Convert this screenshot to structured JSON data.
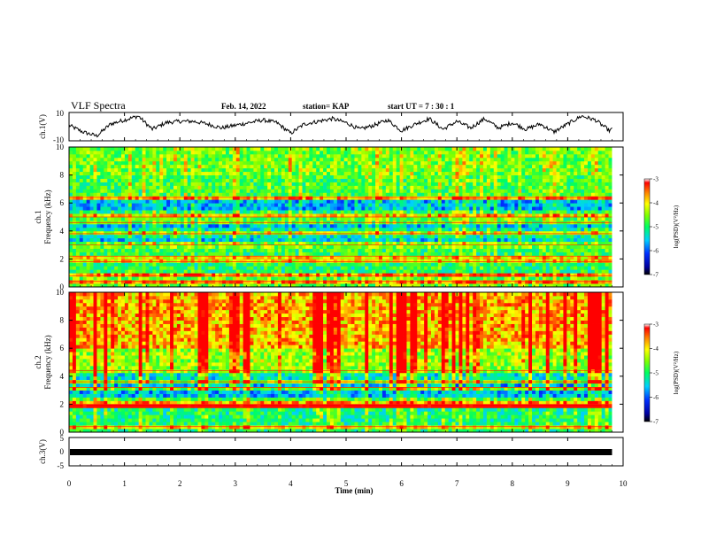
{
  "header": {
    "title": "VLF Spectra",
    "date": "Feb. 14, 2022",
    "station": "station= KAP",
    "start": "start  UT =   7 : 30 : 1"
  },
  "chart_data": [
    {
      "type": "line",
      "panel": "ch1",
      "ylabel": "ch.1(V)",
      "ylim": [
        -10,
        10
      ],
      "yticks": [
        "10",
        "-10"
      ],
      "xlim": [
        0,
        10
      ],
      "x": [
        0.0,
        0.25,
        0.5,
        0.75,
        1.0,
        1.25,
        1.5,
        1.75,
        2.0,
        2.25,
        2.5,
        2.75,
        3.0,
        3.25,
        3.5,
        3.75,
        4.0,
        4.25,
        4.5,
        4.75,
        5.0,
        5.25,
        5.5,
        5.75,
        6.0,
        6.25,
        6.5,
        6.75,
        7.0,
        7.25,
        7.5,
        7.75,
        8.0,
        8.25,
        8.5,
        8.75,
        9.0,
        9.25,
        9.5,
        9.75,
        9.8
      ],
      "y": [
        1,
        -4,
        -7,
        2,
        5,
        8,
        -2,
        3,
        4,
        4,
        2,
        -1,
        1,
        3,
        5,
        3,
        -5,
        2,
        4,
        6,
        3,
        -2,
        1,
        5,
        -3,
        2,
        6,
        -2,
        4,
        -1,
        6,
        -1,
        3,
        -2,
        2,
        -4,
        2,
        8,
        5,
        -3,
        -2
      ]
    },
    {
      "type": "heatmap",
      "panel": "ch1-spectrogram",
      "ylabel": "ch.1\nFrequency (kHz)",
      "xlim": [
        0,
        10
      ],
      "ylim": [
        0,
        10
      ],
      "yticks": [
        "0",
        "2",
        "4",
        "6",
        "8",
        "10"
      ],
      "colorbar": {
        "label": "log(PSD)(V²/Hz)",
        "range": [
          -7,
          -3
        ],
        "ticks": [
          "-3",
          "-4",
          "-5",
          "-6",
          "-7"
        ]
      },
      "band_mean_logpsd": [
        {
          "f": [
            0.0,
            1.0
          ],
          "value": -4.6
        },
        {
          "f": [
            1.0,
            2.2
          ],
          "value": -5.0
        },
        {
          "f": [
            2.2,
            2.8
          ],
          "value": -4.9
        },
        {
          "f": [
            2.8,
            3.6
          ],
          "value": -5.6
        },
        {
          "f": [
            3.6,
            4.2
          ],
          "value": -5.3
        },
        {
          "f": [
            4.2,
            5.0
          ],
          "value": -5.7
        },
        {
          "f": [
            5.0,
            5.6
          ],
          "value": -5.0
        },
        {
          "f": [
            5.6,
            6.2
          ],
          "value": -5.7
        },
        {
          "f": [
            6.2,
            8.0
          ],
          "value": -4.8
        },
        {
          "f": [
            8.0,
            10.0
          ],
          "value": -4.6
        }
      ],
      "lines_khz": [
        0.4,
        0.8,
        1.8,
        2.2,
        3.0,
        3.8,
        4.6,
        5.0,
        6.4
      ]
    },
    {
      "type": "heatmap",
      "panel": "ch2-spectrogram",
      "ylabel": "ch.2\nFrequency (kHz)",
      "xlim": [
        0,
        10
      ],
      "ylim": [
        0,
        10
      ],
      "yticks": [
        "0",
        "2",
        "4",
        "6",
        "8",
        "10"
      ],
      "colorbar": {
        "label": "log(PSD)(V²/Hz)",
        "range": [
          -7,
          -3
        ],
        "ticks": [
          "-3",
          "-4",
          "-5",
          "-6",
          "-7"
        ]
      },
      "band_mean_logpsd": [
        {
          "f": [
            0.0,
            1.8
          ],
          "value": -5.1
        },
        {
          "f": [
            1.8,
            2.6
          ],
          "value": -4.8
        },
        {
          "f": [
            2.6,
            3.4
          ],
          "value": -5.7
        },
        {
          "f": [
            3.4,
            4.4
          ],
          "value": -5.4
        },
        {
          "f": [
            4.4,
            6.0
          ],
          "value": -4.4
        },
        {
          "f": [
            6.0,
            10.0
          ],
          "value": -3.8
        }
      ],
      "lines_khz": [
        0.4,
        1.8,
        2.0,
        3.2,
        3.6,
        4.4
      ]
    },
    {
      "type": "line",
      "panel": "ch3",
      "ylabel": "ch.3(V)",
      "ylim": [
        -5,
        5
      ],
      "yticks": [
        "5",
        "0",
        "-5"
      ],
      "xlim": [
        0,
        9.8
      ],
      "x": [
        0,
        9.8
      ],
      "y": [
        -1.5,
        -1.5
      ],
      "xlabel": "Time (min)",
      "xticks": [
        "0",
        "1",
        "2",
        "3",
        "4",
        "5",
        "6",
        "7",
        "8",
        "9",
        "10"
      ]
    }
  ],
  "colors": {
    "scale": [
      "#000080",
      "#0000ff",
      "#00c8ff",
      "#00ff80",
      "#80ff00",
      "#ffff00",
      "#ff8000",
      "#ff0000"
    ]
  }
}
